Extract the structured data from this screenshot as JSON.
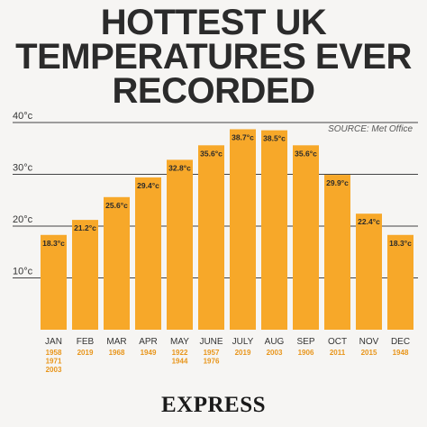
{
  "title_lines": [
    "HOTTEST UK",
    "TEMPERATURES EVER",
    "RECORDED"
  ],
  "source": "SOURCE: Met Office",
  "brand": "EXPRESS",
  "colors": {
    "bar": "#f7a829",
    "background": "#f6f5f3",
    "grid": "#444444",
    "year_text": "#e8951a"
  },
  "chart_data": {
    "type": "bar",
    "categories": [
      "JAN",
      "FEB",
      "MAR",
      "APR",
      "MAY",
      "JUNE",
      "JULY",
      "AUG",
      "SEP",
      "OCT",
      "NOV",
      "DEC"
    ],
    "values": [
      18.3,
      21.2,
      25.6,
      29.4,
      32.8,
      35.6,
      38.7,
      38.5,
      35.6,
      29.9,
      22.4,
      18.3
    ],
    "value_labels": [
      "18.3°c",
      "21.2°c",
      "25.6°c",
      "29.4°c",
      "32.8°c",
      "35.6°c",
      "38.7°c",
      "38.5°c",
      "35.6°c",
      "29.9°c",
      "22.4°c",
      "18.3°c"
    ],
    "years": [
      [
        "1958",
        "1971",
        "2003"
      ],
      [
        "2019"
      ],
      [
        "1968"
      ],
      [
        "1949"
      ],
      [
        "1922",
        "1944"
      ],
      [
        "1957",
        "1976"
      ],
      [
        "2019"
      ],
      [
        "2003"
      ],
      [
        "1906"
      ],
      [
        "2011"
      ],
      [
        "2015"
      ],
      [
        "1948"
      ]
    ],
    "ylim": [
      0,
      40
    ],
    "yticks": [
      10,
      20,
      30,
      40
    ],
    "ytick_labels": [
      "10°c",
      "20°c",
      "30°c",
      "40°c"
    ],
    "grid": true
  }
}
